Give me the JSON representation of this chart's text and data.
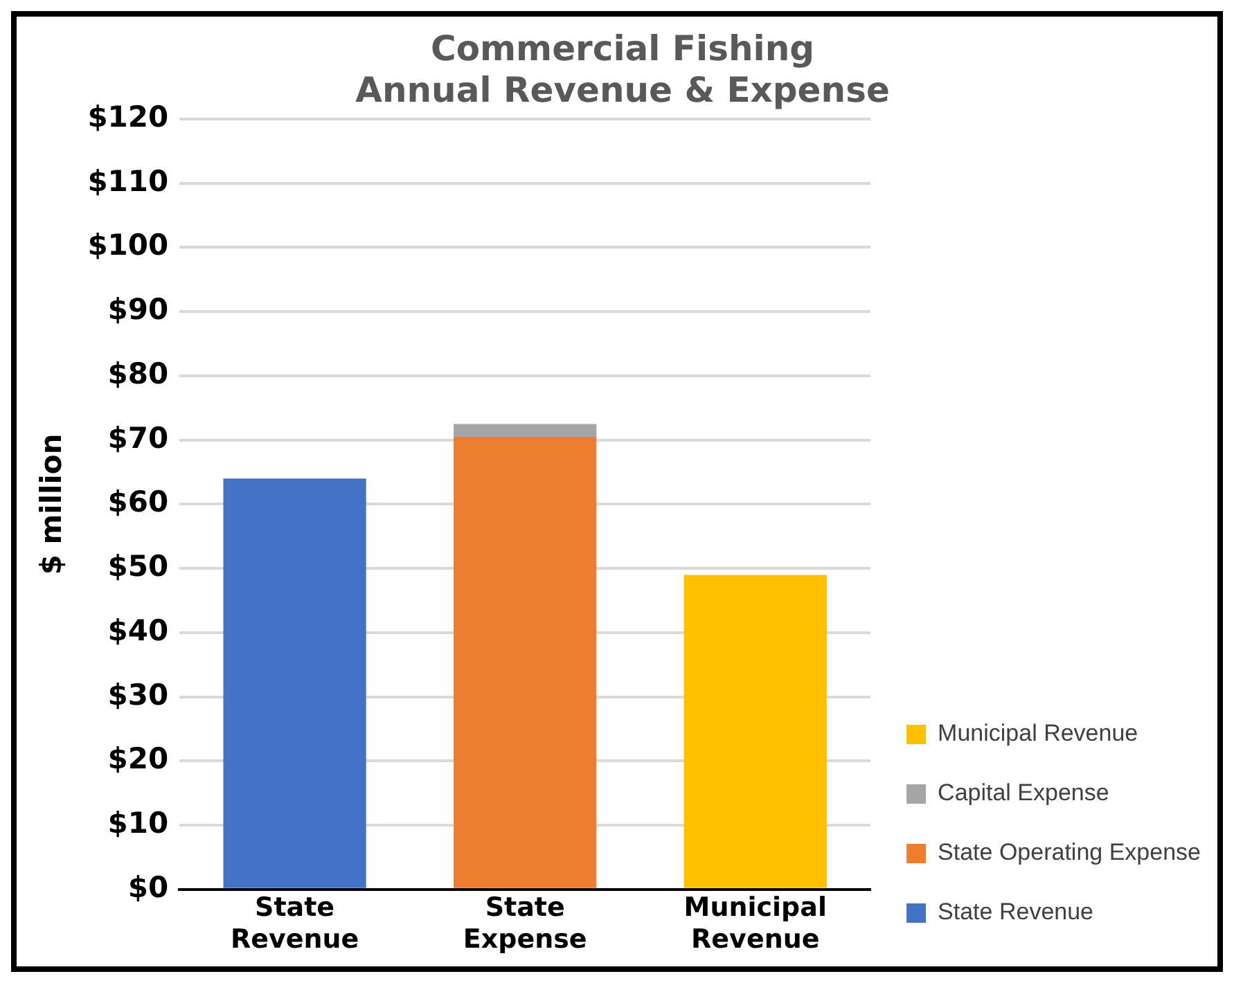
{
  "chart_data": {
    "type": "bar",
    "title": [
      "Commercial Fishing",
      "Annual Revenue & Expense"
    ],
    "ylabel": "$ million",
    "categories": [
      "State Revenue",
      "State Expense",
      "Municipal Revenue"
    ],
    "stacked": true,
    "series": [
      {
        "name": "State Revenue",
        "color": "#4472c4",
        "values": [
          64,
          null,
          null
        ]
      },
      {
        "name": "State Operating Expense",
        "color": "#ed7d31",
        "values": [
          null,
          70.5,
          null
        ]
      },
      {
        "name": "Capital Expense",
        "color": "#a5a5a5",
        "values": [
          null,
          2,
          null
        ]
      },
      {
        "name": "Municipal Revenue",
        "color": "#ffc000",
        "values": [
          null,
          null,
          49
        ]
      }
    ],
    "ylim": [
      0,
      120
    ],
    "yticks": [
      {
        "value": 0,
        "label": "$0"
      },
      {
        "value": 10,
        "label": "$10"
      },
      {
        "value": 20,
        "label": "$20"
      },
      {
        "value": 30,
        "label": "$30"
      },
      {
        "value": 40,
        "label": "$40"
      },
      {
        "value": 50,
        "label": "$50"
      },
      {
        "value": 60,
        "label": "$60"
      },
      {
        "value": 70,
        "label": "$70"
      },
      {
        "value": 80,
        "label": "$80"
      },
      {
        "value": 90,
        "label": "$90"
      },
      {
        "value": 100,
        "label": "$100"
      },
      {
        "value": 110,
        "label": "$110"
      },
      {
        "value": 120,
        "label": "$120"
      }
    ],
    "grid": "y",
    "legend": "right"
  }
}
